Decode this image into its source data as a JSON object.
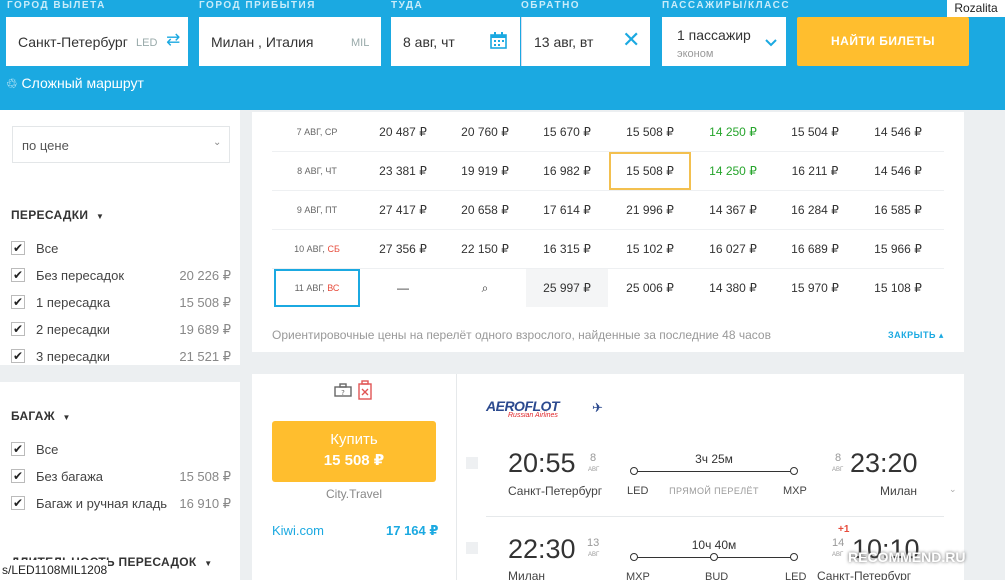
{
  "header": {
    "from_label": "ГОРОД ВЫЛЕТА",
    "to_label": "ГОРОД ПРИБЫТИЯ",
    "depart_label": "ТУДА",
    "return_label": "ОБРАТНО",
    "pax_label": "ПАССАЖИРЫ/КЛАСС",
    "from_value": "Санкт-Петербург",
    "from_code": "LED",
    "to_value": "Милан , Италия",
    "to_code": "MIL",
    "depart_value": "8 авг, чт",
    "return_value": "13 авг, вт",
    "pax_value": "1 пассажир",
    "pax_class": "эконом",
    "search_button": "НАЙТИ БИЛЕТЫ",
    "complex_route": "Сложный маршрут",
    "user_tag": "Rozalita",
    "brand_color": "#1ba9e1",
    "accent_color": "#ffbe2e"
  },
  "sidebar": {
    "sort_value": "по цене",
    "transfers_title": "ПЕРЕСАДКИ",
    "transfers": [
      {
        "label": "Все",
        "price": ""
      },
      {
        "label": "Без пересадок",
        "price": "20 226 ₽"
      },
      {
        "label": "1 пересадка",
        "price": "15 508 ₽"
      },
      {
        "label": "2 пересадки",
        "price": "19 689 ₽"
      },
      {
        "label": "3 пересадки",
        "price": "21 521 ₽"
      }
    ],
    "baggage_title": "БАГАЖ",
    "baggage": [
      {
        "label": "Все",
        "price": ""
      },
      {
        "label": "Без багажа",
        "price": "15 508 ₽"
      },
      {
        "label": "Багаж и ручная кладь",
        "price": "16 910 ₽"
      }
    ],
    "duration_title": "ДЛИТЕЛЬНОСТЬ ПЕРЕСАДОК",
    "check_mark": "✔"
  },
  "matrix": {
    "rows": [
      {
        "d": "7 АВГ,",
        "w": "СР",
        "weekend": false,
        "cells": [
          "20 487 ₽",
          "20 760 ₽",
          "15 670 ₽",
          "15 508 ₽",
          "14 250 ₽",
          "15 504 ₽",
          "14 546 ₽"
        ]
      },
      {
        "d": "8 АВГ,",
        "w": "ЧТ",
        "weekend": false,
        "cells": [
          "23 381 ₽",
          "19 919 ₽",
          "16 982 ₽",
          "15 508 ₽",
          "14 250 ₽",
          "16 211 ₽",
          "14 546 ₽"
        ]
      },
      {
        "d": "9 АВГ,",
        "w": "ПТ",
        "weekend": false,
        "cells": [
          "27 417 ₽",
          "20 658 ₽",
          "17 614 ₽",
          "21 996 ₽",
          "14 367 ₽",
          "16 284 ₽",
          "16 585 ₽"
        ]
      },
      {
        "d": "10 АВГ,",
        "w": "СБ",
        "weekend": true,
        "cells": [
          "27 356 ₽",
          "22 150 ₽",
          "16 315 ₽",
          "15 102 ₽",
          "16 027 ₽",
          "16 689 ₽",
          "15 966 ₽"
        ]
      },
      {
        "d": "11 АВГ,",
        "w": "ВС",
        "weekend": true,
        "cells": [
          "—",
          "⌕",
          "25 997 ₽",
          "25 006 ₽",
          "14 380 ₽",
          "15 970 ₽",
          "15 108 ₽"
        ]
      }
    ],
    "note": "Ориентировочные цены на перелёт одного взрослого, найденные за последние 48 часов",
    "close": "ЗАКРЫТЬ ▴"
  },
  "ticket": {
    "buy_label": "Купить",
    "buy_price": "15 508 ₽",
    "agency": "City.Travel",
    "alt_agency": "Kiwi.com",
    "alt_price": "17 164 ₽",
    "airline_logo": "AEROFLOT",
    "airline_sub": "Russian Airlines",
    "seg1": {
      "dep_time": "20:55",
      "dep_day": "8",
      "dep_mon": "АВГ",
      "dep_city": "Санкт-Петербург",
      "dep_code": "LED",
      "duration": "3ч 25м",
      "type": "ПРЯМОЙ ПЕРЕЛЁТ",
      "arr_code": "MXP",
      "arr_day": "8",
      "arr_mon": "АВГ",
      "arr_time": "23:20",
      "arr_city": "Милан"
    },
    "seg2": {
      "dep_time": "22:30",
      "dep_day": "13",
      "dep_mon": "АВГ",
      "dep_city": "Милан",
      "dep_code": "MXP",
      "duration": "10ч 40м",
      "stop_code": "BUD",
      "arr_code": "LED",
      "arr_day": "14",
      "arr_mon": "АВГ",
      "arr_plus": "+1",
      "arr_time": "10:10",
      "arr_city": "Санкт-Петербург"
    }
  },
  "status_url": "s/LED1108MIL12081",
  "watermark": "RECOMMEND.RU"
}
